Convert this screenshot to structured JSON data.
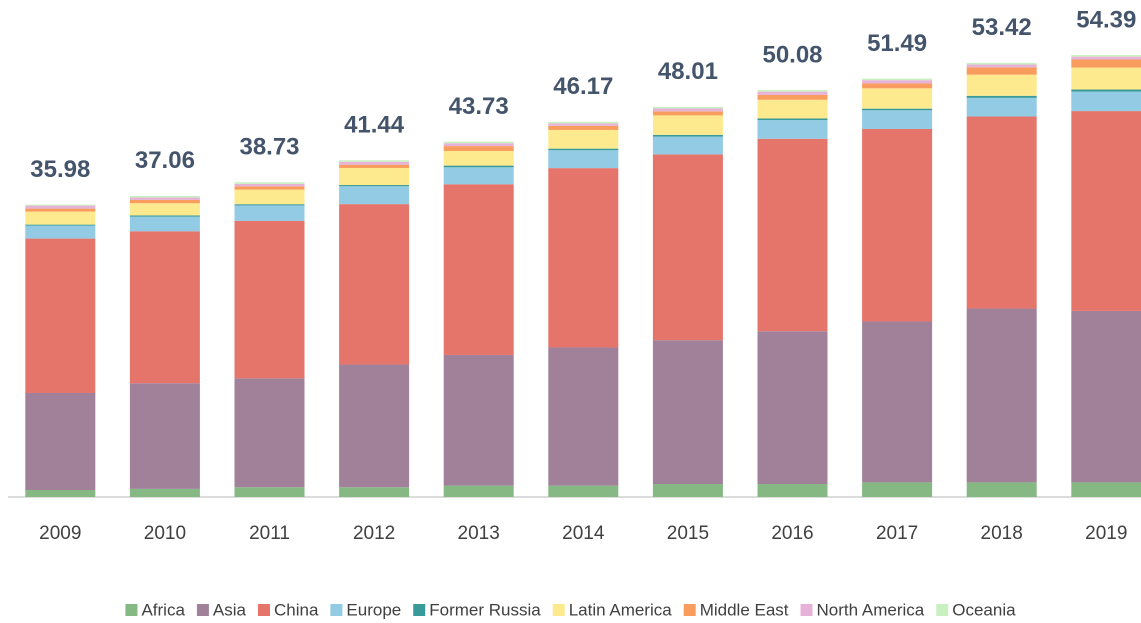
{
  "chart_data": {
    "type": "stacked_bar",
    "categories": [
      "2009",
      "2010",
      "2011",
      "2012",
      "2013",
      "2014",
      "2015",
      "2016",
      "2017",
      "2018",
      "2019"
    ],
    "totals": [
      35.98,
      37.06,
      38.73,
      41.44,
      43.73,
      46.17,
      48.01,
      50.08,
      51.49,
      53.42,
      54.39
    ],
    "series": [
      {
        "name": "Africa",
        "color": "#86b883",
        "values": [
          0.86,
          1.0,
          1.2,
          1.2,
          1.4,
          1.4,
          1.6,
          1.6,
          1.8,
          1.8,
          1.8
        ]
      },
      {
        "name": "Asia",
        "color": "#a08199",
        "values": [
          11.94,
          13.0,
          13.4,
          15.1,
          16.08,
          17.0,
          17.7,
          18.8,
          19.8,
          21.4,
          21.1
        ]
      },
      {
        "name": "China",
        "color": "#e5756b",
        "values": [
          19.0,
          18.7,
          19.38,
          19.74,
          21.0,
          22.07,
          22.86,
          23.68,
          23.69,
          23.62,
          24.59
        ]
      },
      {
        "name": "Europe",
        "color": "#92cbe3",
        "values": [
          1.6,
          1.8,
          1.9,
          2.2,
          2.1,
          2.2,
          2.2,
          2.3,
          2.3,
          2.3,
          2.4
        ]
      },
      {
        "name": "Former Russia",
        "color": "#3a9a99",
        "values": [
          0.12,
          0.15,
          0.15,
          0.15,
          0.2,
          0.2,
          0.2,
          0.2,
          0.2,
          0.25,
          0.25
        ]
      },
      {
        "name": "Latin America",
        "color": "#fde98e",
        "values": [
          1.6,
          1.5,
          1.8,
          2.1,
          1.8,
          2.3,
          2.4,
          2.3,
          2.5,
          2.6,
          2.7
        ]
      },
      {
        "name": "Middle East",
        "color": "#f89d5e",
        "values": [
          0.37,
          0.4,
          0.4,
          0.4,
          0.6,
          0.5,
          0.5,
          0.6,
          0.6,
          0.9,
          1.0
        ]
      },
      {
        "name": "North America",
        "color": "#e7b2d7",
        "values": [
          0.37,
          0.3,
          0.3,
          0.35,
          0.35,
          0.3,
          0.35,
          0.4,
          0.4,
          0.35,
          0.35
        ]
      },
      {
        "name": "Oceania",
        "color": "#c9f0c1",
        "values": [
          0.12,
          0.2,
          0.2,
          0.2,
          0.2,
          0.2,
          0.2,
          0.2,
          0.2,
          0.2,
          0.2
        ]
      }
    ]
  }
}
